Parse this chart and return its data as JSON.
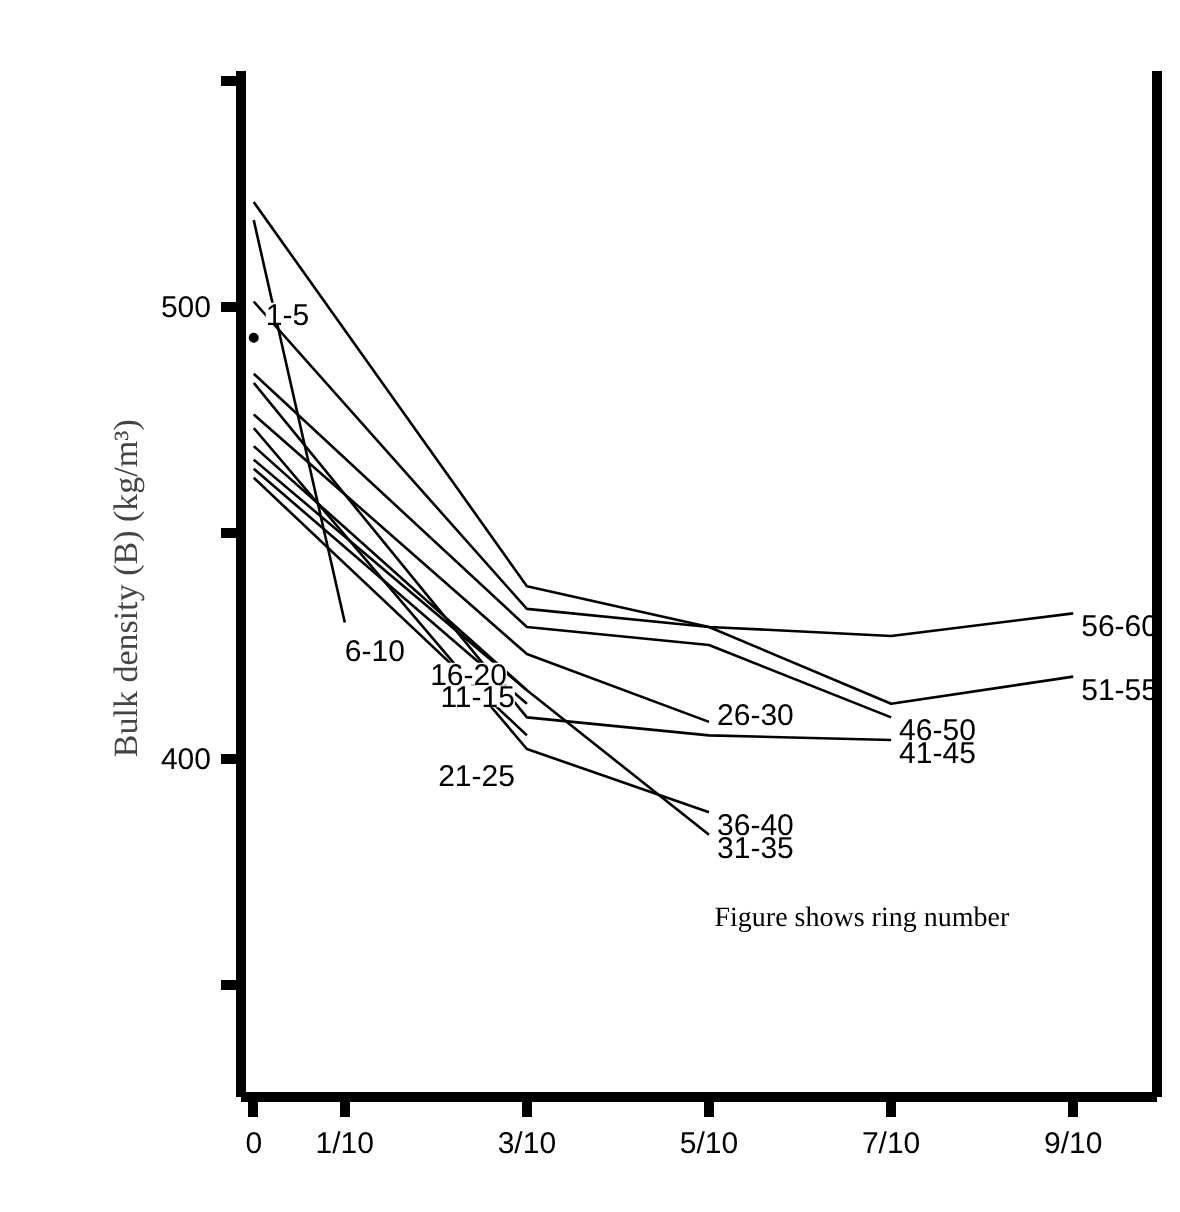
{
  "chart_data": {
    "type": "line",
    "ylabel": "Bulk density (B)  (kg/m³)",
    "x": [
      0,
      0.3,
      0.5,
      0.7,
      0.9
    ],
    "xlim": [
      -0.014,
      0.992
    ],
    "ylim": [
      325,
      552
    ],
    "xticks": [
      0,
      {
        "value": 0.1,
        "label": "1/10"
      },
      {
        "value": 0.3,
        "label": "3/10"
      },
      {
        "value": 0.5,
        "label": "5/10"
      },
      {
        "value": 0.7,
        "label": "7/10"
      },
      {
        "value": 0.9,
        "label": "9/10"
      }
    ],
    "yticks": [
      {
        "value": 350,
        "label": null
      },
      400,
      {
        "value": 450,
        "label": null
      },
      500,
      {
        "value": 550,
        "label": null
      }
    ],
    "grid": false,
    "marker": "none",
    "line_style": "solid",
    "series": [
      {
        "name": "1-5",
        "color": "#000000",
        "type": "scatter",
        "marker": "circle",
        "x": [
          0
        ],
        "values": [
          493
        ]
      },
      {
        "name": "6-10",
        "color": "#000000",
        "x": [
          0,
          0.1
        ],
        "values": [
          519,
          430
        ]
      },
      {
        "name": "11-15",
        "color": "#000000",
        "x": [
          0,
          0.3
        ],
        "values": [
          466,
          415
        ]
      },
      {
        "name": "16-20",
        "color": "#000000",
        "x": [
          0,
          0.3
        ],
        "values": [
          464,
          412
        ]
      },
      {
        "name": "21-25",
        "color": "#000000",
        "x": [
          0,
          0.3
        ],
        "values": [
          462,
          405
        ]
      },
      {
        "name": "26-30",
        "color": "#000000",
        "values": [
          476,
          423,
          408,
          null,
          null
        ]
      },
      {
        "name": "31-35",
        "color": "#000000",
        "values": [
          469,
          415,
          383,
          null,
          null
        ]
      },
      {
        "name": "36-40",
        "color": "#000000",
        "values": [
          473,
          402,
          388,
          null,
          null
        ]
      },
      {
        "name": "41-45",
        "color": "#000000",
        "values": [
          483,
          409,
          405,
          404,
          null
        ]
      },
      {
        "name": "46-50",
        "color": "#000000",
        "values": [
          485,
          429,
          425,
          409,
          null
        ]
      },
      {
        "name": "51-55",
        "color": "#000000",
        "values": [
          501,
          433,
          429,
          412,
          418
        ]
      },
      {
        "name": "56-60",
        "color": "#000000",
        "values": [
          523,
          438,
          429,
          427,
          432
        ]
      }
    ],
    "annotations": [
      "Figure shows ring number"
    ]
  }
}
